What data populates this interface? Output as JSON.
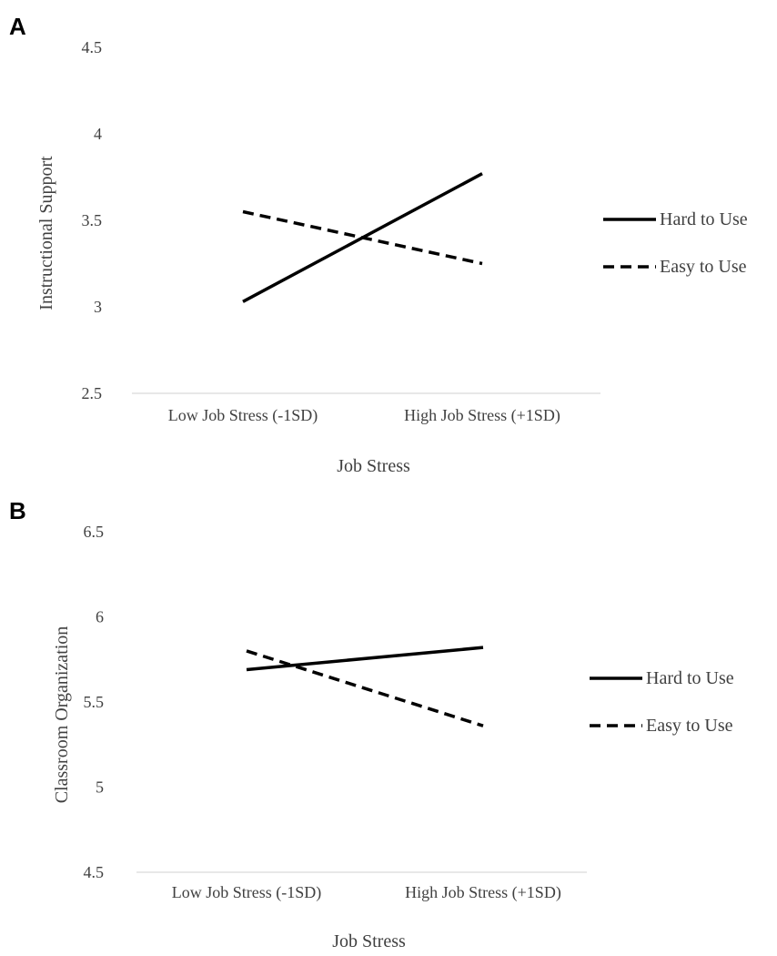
{
  "chart_data": [
    {
      "type": "line",
      "panel_label": "A",
      "categories": [
        "Low Job Stress (-1SD)",
        "High Job Stress (+1SD)"
      ],
      "series": [
        {
          "name": "Hard to Use",
          "values": [
            3.03,
            3.77
          ],
          "style": "solid"
        },
        {
          "name": "Easy to Use",
          "values": [
            3.55,
            3.25
          ],
          "style": "dashed"
        }
      ],
      "xlabel": "Job Stress",
      "ylabel": "Instructional Support",
      "ylim": [
        2.5,
        4.5
      ],
      "yticks": [
        "2.5",
        "3",
        "3.5",
        "4",
        "4.5"
      ],
      "grid": false,
      "legend_position": "right"
    },
    {
      "type": "line",
      "panel_label": "B",
      "categories": [
        "Low Job Stress (-1SD)",
        "High Job Stress (+1SD)"
      ],
      "series": [
        {
          "name": "Hard to Use",
          "values": [
            5.69,
            5.82
          ],
          "style": "solid"
        },
        {
          "name": "Easy to Use",
          "values": [
            5.8,
            5.36
          ],
          "style": "dashed"
        }
      ],
      "xlabel": "Job Stress",
      "ylabel": "Classroom Organization",
      "ylim": [
        4.5,
        6.5
      ],
      "yticks": [
        "4.5",
        "5",
        "5.5",
        "6",
        "6.5"
      ],
      "grid": false,
      "legend_position": "right"
    }
  ],
  "colors": {
    "line": "#000000",
    "text": "#404040",
    "axis": "#d9d9d9"
  }
}
